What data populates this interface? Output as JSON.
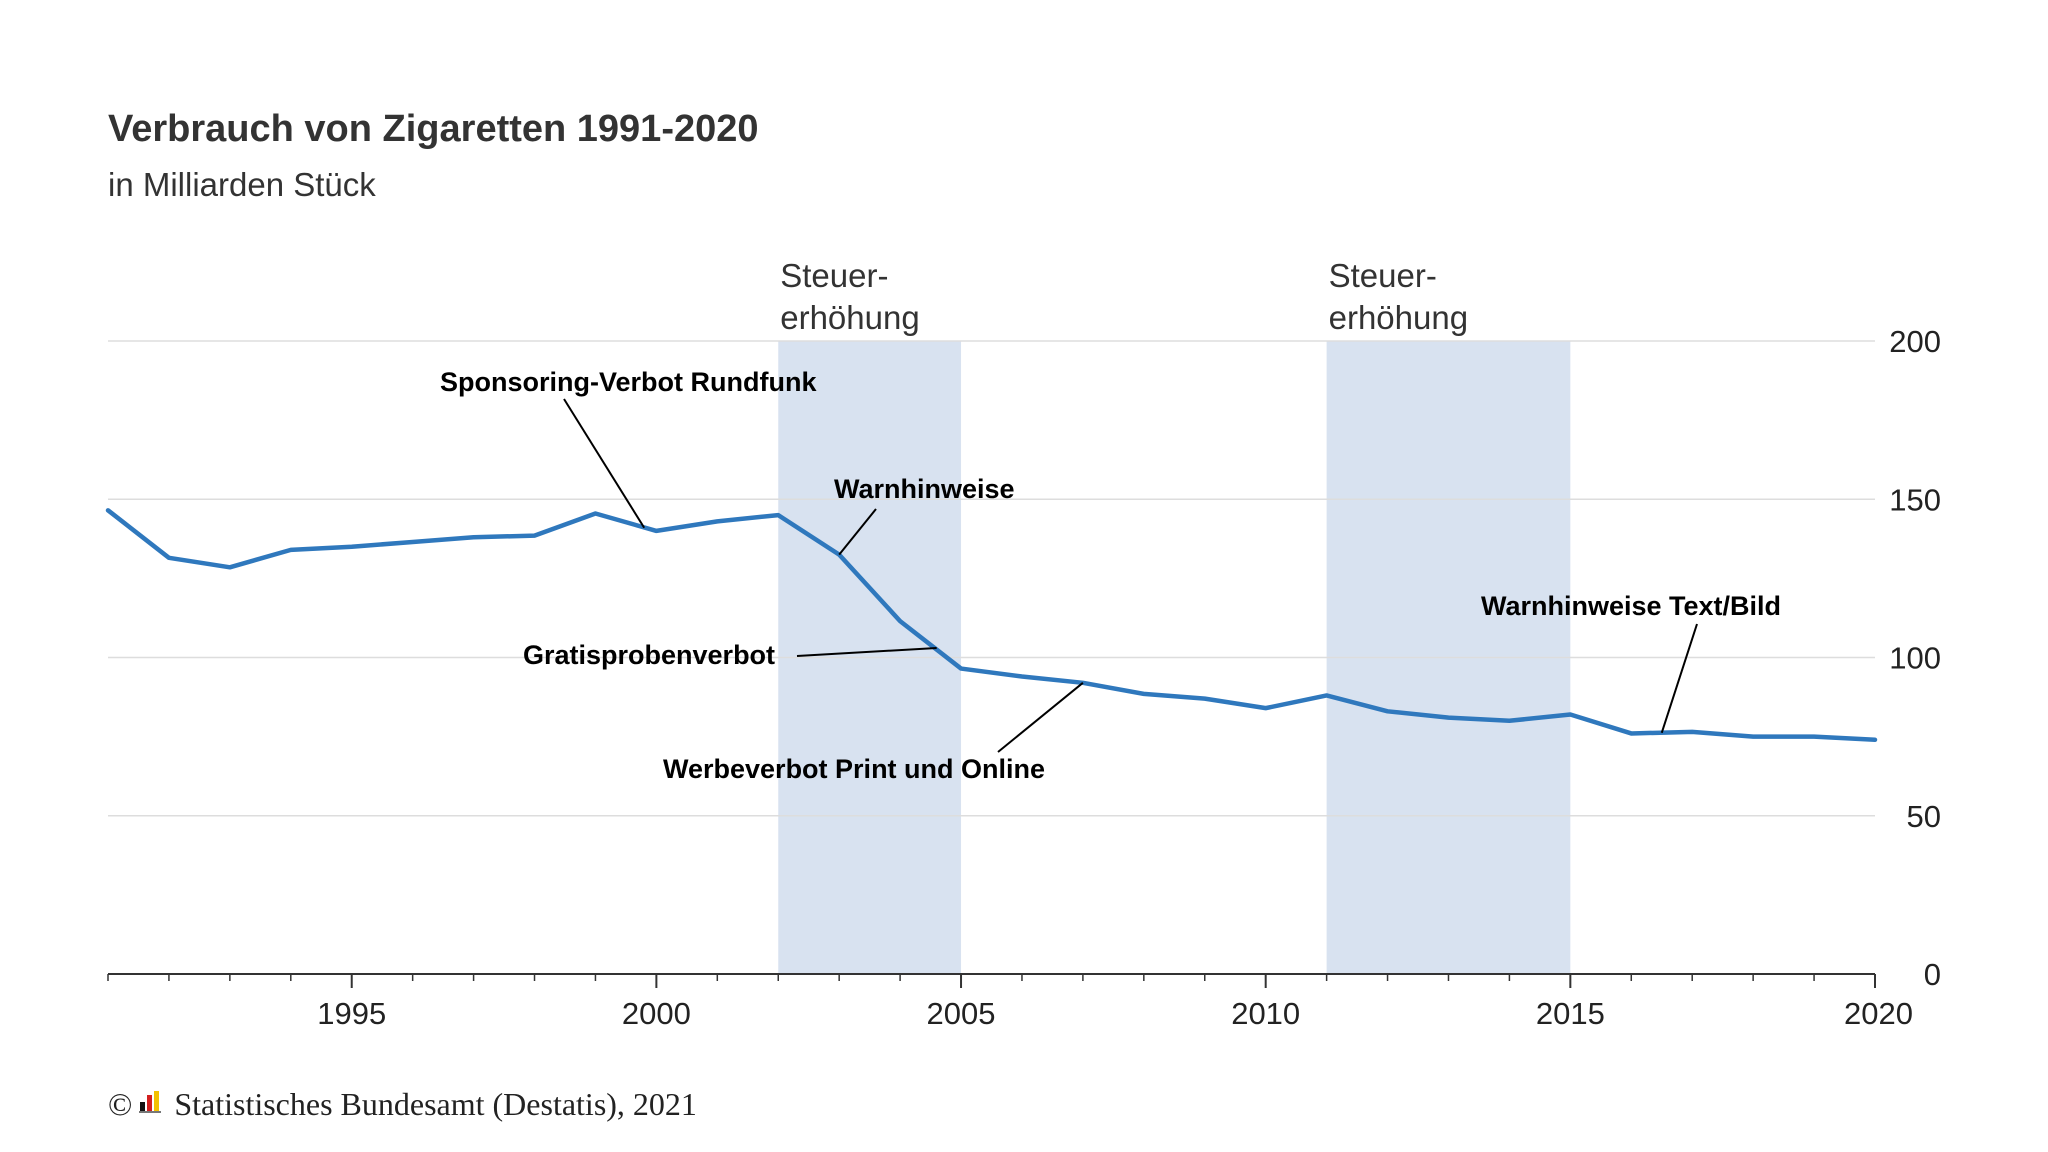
{
  "header": {
    "title": "Verbrauch von Zigaretten 1991-2020",
    "subtitle": "in Milliarden Stück"
  },
  "footer": {
    "copyright_symbol": "©",
    "source": "Statistisches Bundesamt (Destatis), 2021"
  },
  "colors": {
    "line": "#2f78bd",
    "band": "#d8e2f0",
    "grid": "#dddddd",
    "axis": "#333333"
  },
  "chart_data": {
    "type": "line",
    "title": "Verbrauch von Zigaretten 1991-2020",
    "subtitle": "in Milliarden Stück",
    "xlim": [
      1991,
      2020
    ],
    "ylim": [
      0,
      200
    ],
    "y_axis_position": "right",
    "grid": true,
    "x_ticks": [
      "1995",
      "2000",
      "2005",
      "2010",
      "2015",
      "2020"
    ],
    "y_ticks": [
      "0",
      "50",
      "100",
      "150",
      "200"
    ],
    "series": [
      {
        "x": [
          1991,
          1992,
          1993,
          1994,
          1995,
          1996,
          1997,
          1998,
          1999,
          2000,
          2001,
          2002,
          2003,
          2004,
          2005,
          2006,
          2007,
          2008,
          2009,
          2010,
          2011,
          2012,
          2013,
          2014,
          2015,
          2016,
          2017,
          2018,
          2019,
          2020
        ],
        "values": [
          146.5,
          131.5,
          128.5,
          134,
          135,
          136.5,
          138,
          138.5,
          145.5,
          140,
          143,
          145,
          132.5,
          111.5,
          96.5,
          94,
          92,
          88.5,
          87,
          84,
          88,
          83,
          81,
          80,
          82,
          76,
          76.5,
          75,
          75,
          74
        ]
      }
    ],
    "bands": [
      {
        "from": 2002,
        "to": 2005,
        "label_line1": "Steuer-",
        "label_line2": "erhöhung"
      },
      {
        "from": 2011,
        "to": 2015,
        "label_line1": "Steuer-",
        "label_line2": "erhöhung"
      }
    ],
    "annotations": [
      {
        "text": "Sponsoring-Verbot Rundfunk",
        "x": 1999.8,
        "y": 141
      },
      {
        "text": "Warnhinweise",
        "x": 2003,
        "y": 132.5
      },
      {
        "text": "Gratisprobenverbot",
        "x": 2004.6,
        "y": 103
      },
      {
        "text": "Werbeverbot Print und Online",
        "x": 2007,
        "y": 92
      },
      {
        "text": "Warnhinweise Text/Bild",
        "x": 2016.5,
        "y": 76.2
      }
    ]
  }
}
